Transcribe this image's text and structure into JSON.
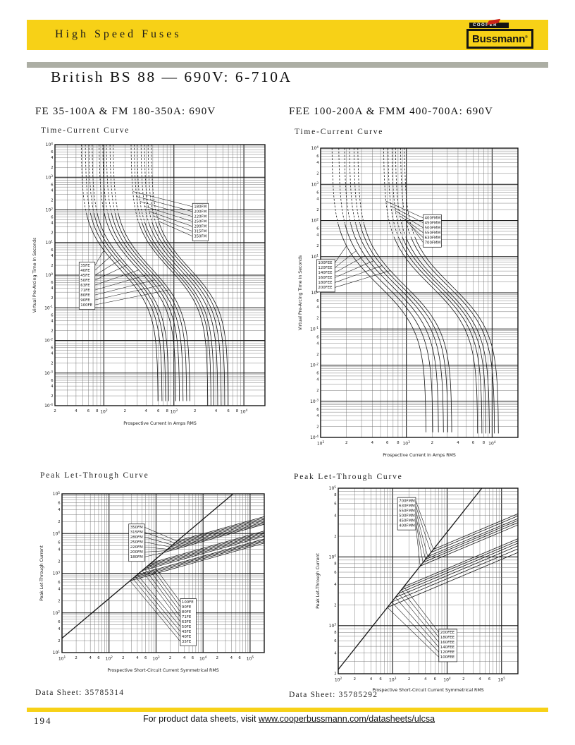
{
  "page": {
    "header": {
      "banner_title": "High Speed Fuses",
      "logo_top": "COOPER",
      "logo_text": "Bussmann",
      "logo_reg": "®"
    },
    "title": "British BS 88 — 690V: 6-710A",
    "left_section_heading": "FE 35-100A & FM 180-350A: 690V",
    "right_section_heading": "FEE 100-200A & FMM 400-700A: 690V",
    "footer": {
      "page_number": "194",
      "note_prefix": "For product data sheets, visit ",
      "note_link": "www.cooperbussmann.com/datasheets/ulcsa",
      "datasheet_left": "Data Sheet: 35785314",
      "datasheet_right": "Data Sheet: 35785292"
    },
    "colors": {
      "banner_yellow": "#F7D117",
      "divider_gray": "#ACAEA4",
      "ink": "#161616",
      "flame_red": "#CC2318"
    }
  },
  "chart_data": [
    {
      "id": "tc_fe_fm",
      "type": "line",
      "title": "Time-Current Curve",
      "xlabel": "Prospective Current In Amps RMS",
      "ylabel": "Virtual Pre-Arcing Time In Seconds",
      "model": "time_current",
      "grid": true,
      "x_log_range": [
        1.301,
        4.301
      ],
      "y_log_range": [
        -4,
        4
      ],
      "x_ticks": [
        "2",
        "4",
        "6",
        "8",
        "10²",
        "2",
        "4",
        "6",
        "8",
        "10³",
        "2",
        "4",
        "6",
        "8",
        "10⁴"
      ],
      "y_decades": [
        "10⁴",
        "10³",
        "10²",
        "10¹",
        "10⁰",
        "10⁻¹",
        "10⁻²",
        "10⁻³",
        "10⁻⁴"
      ],
      "x_minor_labeled": [
        2,
        4,
        6,
        8
      ],
      "y_minor_labeled": [
        6,
        4,
        2
      ],
      "families": [
        {
          "series_labels": [
            "35FE",
            "40FE",
            "45FE",
            "50FE",
            "63FE",
            "71FE",
            "80FE",
            "90FE",
            "100FE"
          ],
          "ratings": [
            35,
            40,
            45,
            50,
            63,
            71,
            80,
            90,
            100
          ],
          "dash_above": 1.9,
          "label_box": {
            "fx": 0.115,
            "fy": 0.45
          }
        },
        {
          "series_labels": [
            "180FM",
            "200FM",
            "220FM",
            "250FM",
            "280FM",
            "315FM",
            "350FM"
          ],
          "ratings": [
            180,
            200,
            220,
            250,
            280,
            315,
            350
          ],
          "dash_above": 1.6,
          "label_box": {
            "fx": 0.655,
            "fy": 0.225
          }
        }
      ]
    },
    {
      "id": "tc_fee_fmm",
      "type": "line",
      "title": "Time-Current Curve",
      "xlabel": "Prospective Current In Amps RMS",
      "ylabel": "Virtual Pre-Arcing Time In Seconds",
      "model": "time_current",
      "grid": true,
      "x_log_range": [
        2,
        4.301
      ],
      "y_log_range": [
        -4,
        4
      ],
      "x_ticks": [
        "10²",
        "2",
        "4",
        "6",
        "8",
        "10³",
        "2",
        "4",
        "6",
        "8",
        "10⁴"
      ],
      "y_decades": [
        "10⁴",
        "10³",
        "10²",
        "10¹",
        "10⁰",
        "10⁻¹",
        "10⁻²",
        "10⁻³",
        "10⁻⁴"
      ],
      "x_minor_labeled": [
        2,
        4,
        6,
        8
      ],
      "y_minor_labeled": [
        6,
        4,
        2
      ],
      "families": [
        {
          "series_labels": [
            "100FEE",
            "120FEE",
            "140FEE",
            "160FEE",
            "180FEE",
            "200FEE"
          ],
          "ratings": [
            100,
            120,
            140,
            160,
            180,
            200
          ],
          "dash_above": 1.9,
          "label_box": {
            "fx": -0.02,
            "fy": 0.385
          }
        },
        {
          "series_labels": [
            "400FMM",
            "450FMM",
            "500FMM",
            "550FMM",
            "630FMM",
            "700FMM"
          ],
          "ratings": [
            400,
            450,
            500,
            550,
            630,
            700
          ],
          "dash_above": 1.55,
          "label_box": {
            "fx": 0.52,
            "fy": 0.23
          }
        }
      ]
    },
    {
      "id": "plt_fe_fm",
      "type": "line",
      "title": "Peak Let-Through Curve",
      "xlabel": "Prospective Short-Circuit Current Symmetrical RMS",
      "ylabel": "Peak Let-Through Current",
      "model": "let_through",
      "grid": true,
      "x_log_range": [
        1,
        5.301
      ],
      "y_log_range": [
        1,
        5
      ],
      "x_ticks": [
        "10¹",
        "2",
        "4",
        "6",
        "10²",
        "2",
        "4",
        "6",
        "10³",
        "2",
        "4",
        "6",
        "10⁴",
        "2",
        "4",
        "6",
        "10⁵",
        "2"
      ],
      "y_decades": [
        "10⁵",
        "10⁴",
        "10³",
        "10²",
        "10¹"
      ],
      "x_minor_labeled": [
        2,
        4,
        6
      ],
      "y_minor_labeled": [
        6,
        4,
        2
      ],
      "families": [
        {
          "series_labels": [
            "350FM",
            "315FM",
            "280FM",
            "250FM",
            "220FM",
            "200FM",
            "180FM"
          ],
          "ratings": [
            350,
            315,
            280,
            250,
            220,
            200,
            180
          ],
          "label_box": {
            "fx": 0.33,
            "fy": 0.19
          }
        },
        {
          "series_labels": [
            "100FE",
            "90FE",
            "80FE",
            "71FE",
            "63FE",
            "50FE",
            "45FE",
            "40FE",
            "35FE"
          ],
          "ratings": [
            100,
            90,
            80,
            71,
            63,
            50,
            45,
            40,
            35
          ],
          "label_box": {
            "fx": 0.585,
            "fy": 0.66
          }
        }
      ]
    },
    {
      "id": "plt_fee_fmm",
      "type": "line",
      "title": "Peak Let-Through Curve",
      "xlabel": "Prospective Short-Circuit Current Symmetrical RMS",
      "ylabel": "Peak Let-Through Current",
      "model": "let_through",
      "grid": true,
      "x_log_range": [
        2,
        5.301
      ],
      "y_log_range": [
        2.3,
        5
      ],
      "x_ticks": [
        "10²",
        "2",
        "4",
        "6",
        "10³",
        "2",
        "4",
        "6",
        "10⁴",
        "2",
        "4",
        "6",
        "10⁵",
        "2"
      ],
      "y_decades": [
        "10⁵",
        "10⁴",
        "10³"
      ],
      "x_minor_labeled": [
        2,
        4,
        6
      ],
      "y_minor_labeled": [
        8,
        6,
        4,
        2
      ],
      "families": [
        {
          "series_labels": [
            "700FMM",
            "630FMM",
            "550FMM",
            "500FMM",
            "450FMM",
            "400FMM"
          ],
          "ratings": [
            700,
            630,
            550,
            500,
            450,
            400
          ],
          "label_box": {
            "fx": 0.33,
            "fy": 0.05
          }
        },
        {
          "series_labels": [
            "200FEE",
            "180FEE",
            "160FEE",
            "140FEE",
            "120FEE",
            "100FEE"
          ],
          "ratings": [
            200,
            180,
            160,
            140,
            120,
            100
          ],
          "label_box": {
            "fx": 0.56,
            "fy": 0.76
          }
        }
      ]
    }
  ]
}
